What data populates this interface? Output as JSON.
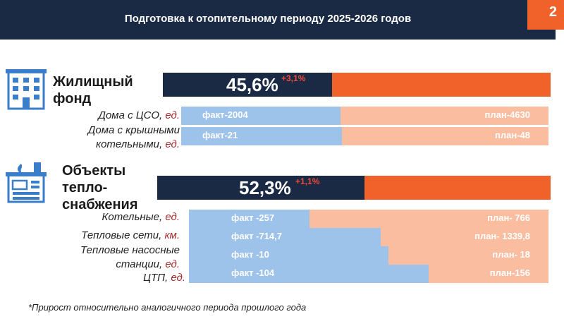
{
  "header": {
    "title": "Подготовка к отопительному периоду 2025-2026 годов",
    "page": "2"
  },
  "sections": [
    {
      "title_lines": [
        "Жилищный",
        "фонд"
      ],
      "icon": "apartment-building-icon",
      "summary": {
        "percent": "45,6%",
        "delta": "+3,1%",
        "value": 45.6
      }
    },
    {
      "title_lines": [
        "Объекты",
        "тепло-",
        "снабжения"
      ],
      "icon": "boiler-house-icon",
      "summary": {
        "percent": "52,3%",
        "delta": "+1,1%",
        "value": 52.3
      }
    }
  ],
  "colors": {
    "dark": "#1b2a44",
    "accent": "#f0622a",
    "fact": "#9ec3ea",
    "plan": "#fbbd9f",
    "unit": "#a12a2a"
  },
  "chart_data": {
    "type": "bar",
    "orientation": "horizontal",
    "stacked": true,
    "title": "Подготовка к отопительному периоду 2025-2026 годов",
    "categories": [
      {
        "label": "Дома с ЦСО,",
        "unit": "ед.",
        "fact": 2004,
        "plan": 4630,
        "fact_text": "факт-2004",
        "plan_text": "план-4630"
      },
      {
        "label": "Дома с крышными котельными,",
        "unit": "ед.",
        "fact": 21,
        "plan": 48,
        "fact_text": "факт-21",
        "plan_text": "план-48"
      },
      {
        "label": "Котельные,",
        "unit": "ед.",
        "fact": 257,
        "plan": 766,
        "fact_text": "факт -257",
        "plan_text": "план- 766"
      },
      {
        "label": "Тепловые сети,",
        "unit": "км.",
        "fact": 714.7,
        "plan": 1339.8,
        "fact_text": "факт -714,7",
        "plan_text": "план- 1339,8"
      },
      {
        "label": "Тепловые насосные станции,",
        "unit": "ед.",
        "fact": 10,
        "plan": 18,
        "fact_text": "факт -10",
        "plan_text": "план- 18"
      },
      {
        "label": "ЦТП,",
        "unit": "ед.",
        "fact": 104,
        "plan": 156,
        "fact_text": "факт -104",
        "plan_text": "план-156"
      }
    ]
  },
  "footnote": "*Прирост относительно аналогичного периода прошлого года"
}
